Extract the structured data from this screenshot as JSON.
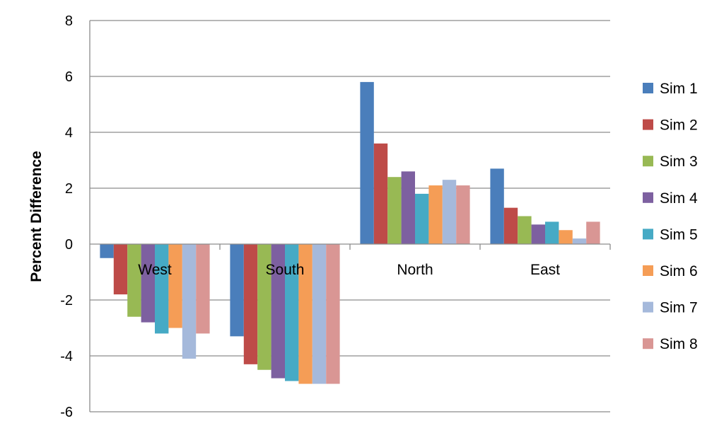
{
  "chart_data": {
    "type": "bar",
    "title": "",
    "xlabel": "",
    "ylabel": "Percent Difference",
    "ylim": [
      -6,
      8
    ],
    "yticks": [
      "8",
      "6",
      "4",
      "2",
      "0",
      "-2",
      "-4",
      "-6"
    ],
    "grid": true,
    "legend_position": "right",
    "categories": [
      "West",
      "South",
      "North",
      "East"
    ],
    "series": [
      {
        "name": "Sim 1",
        "color": "#4A7EBB",
        "values": [
          -0.5,
          -3.3,
          5.8,
          2.7
        ]
      },
      {
        "name": "Sim 2",
        "color": "#BE4B48",
        "values": [
          -1.8,
          -4.3,
          3.6,
          1.3
        ]
      },
      {
        "name": "Sim 3",
        "color": "#98B954",
        "values": [
          -2.6,
          -4.5,
          2.4,
          1.0
        ]
      },
      {
        "name": "Sim 4",
        "color": "#7D60A0",
        "values": [
          -2.8,
          -4.8,
          2.6,
          0.7
        ]
      },
      {
        "name": "Sim 5",
        "color": "#46AAC5",
        "values": [
          -3.2,
          -4.9,
          1.8,
          0.8
        ]
      },
      {
        "name": "Sim 6",
        "color": "#F59D56",
        "values": [
          -3.0,
          -5.0,
          2.1,
          0.5
        ]
      },
      {
        "name": "Sim 7",
        "color": "#A5B9DB",
        "values": [
          -4.1,
          -5.0,
          2.3,
          0.2
        ]
      },
      {
        "name": "Sim 8",
        "color": "#D99694",
        "values": [
          -3.2,
          -5.0,
          2.1,
          0.8
        ]
      }
    ]
  }
}
